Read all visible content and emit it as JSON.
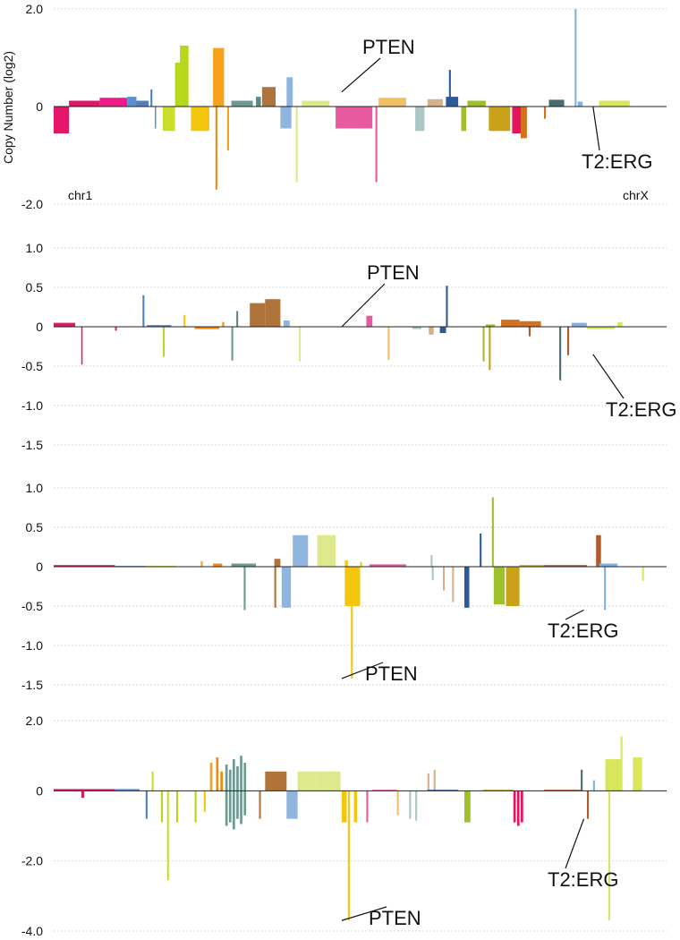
{
  "figure": {
    "colors": {
      "gridline": "#d9d9d9",
      "baseline": "#222222",
      "leader": "#111111",
      "chromosomes": [
        "#e3166a",
        "#f0198a",
        "#5a8fd0",
        "#4f7fbf",
        "#c8de2a",
        "#b6d81c",
        "#f4c60e",
        "#f7a11b",
        "#ef8a0e",
        "#6f9a92",
        "#5a8a7f",
        "#b07339",
        "#c07f45",
        "#8fb4dd",
        "#dde98c",
        "#e85a9f",
        "#f4be64",
        "#a9c7c4",
        "#d6b08a",
        "#2d5a9b",
        "#9ec02b",
        "#c9a219",
        "#e1165c",
        "#d4701e",
        "#b25a2a",
        "#4a6b6b",
        "#7fb2e0",
        "#d7e65a"
      ]
    }
  },
  "chart_data": [
    {
      "type": "bar",
      "panel": "1",
      "ylabel": "Copy Number (log2)",
      "ylim": [
        -2.0,
        2.0
      ],
      "yticks": [
        2.0,
        0,
        -2.0
      ],
      "ytick_labels": [
        "2.0",
        "0",
        "-2.0"
      ],
      "x_domain": [
        0,
        1000
      ],
      "start_label": "chr1",
      "end_label": "chrX",
      "annotations": [
        {
          "text": "PTEN",
          "x": 470,
          "y": 0.3
        },
        {
          "text": "T2:ERG",
          "x": 880,
          "y": 0.0
        }
      ],
      "segments": [
        {
          "x": 0,
          "w": 25,
          "v": -0.55,
          "c": 0
        },
        {
          "x": 25,
          "w": 50,
          "v": 0.12,
          "c": 0
        },
        {
          "x": 75,
          "w": 45,
          "v": 0.18,
          "c": 1
        },
        {
          "x": 120,
          "w": 15,
          "v": 0.2,
          "c": 2
        },
        {
          "x": 135,
          "w": 20,
          "v": 0.12,
          "c": 3
        },
        {
          "x": 158,
          "w": 3,
          "v": 0.35,
          "c": 3
        },
        {
          "x": 165,
          "w": 2,
          "v": -0.45,
          "c": 2
        },
        {
          "x": 178,
          "w": 20,
          "v": -0.5,
          "c": 4
        },
        {
          "x": 198,
          "w": 8,
          "v": 0.9,
          "c": 5
        },
        {
          "x": 206,
          "w": 14,
          "v": 1.25,
          "c": 5
        },
        {
          "x": 224,
          "w": 30,
          "v": -0.5,
          "c": 6
        },
        {
          "x": 260,
          "w": 18,
          "v": 1.2,
          "c": 7
        },
        {
          "x": 264,
          "w": 3,
          "v": -1.7,
          "c": 8
        },
        {
          "x": 283,
          "w": 3,
          "v": -0.9,
          "c": 7
        },
        {
          "x": 290,
          "w": 35,
          "v": 0.12,
          "c": 9
        },
        {
          "x": 330,
          "w": 8,
          "v": 0.2,
          "c": 10
        },
        {
          "x": 340,
          "w": 22,
          "v": 0.4,
          "c": 11
        },
        {
          "x": 370,
          "w": 18,
          "v": -0.45,
          "c": 13
        },
        {
          "x": 380,
          "w": 10,
          "v": 0.6,
          "c": 13
        },
        {
          "x": 395,
          "w": 3,
          "v": -1.55,
          "c": 14
        },
        {
          "x": 405,
          "w": 45,
          "v": 0.12,
          "c": 14
        },
        {
          "x": 460,
          "w": 60,
          "v": -0.45,
          "c": 15
        },
        {
          "x": 525,
          "w": 3,
          "v": -1.55,
          "c": 15
        },
        {
          "x": 530,
          "w": 45,
          "v": 0.18,
          "c": 16
        },
        {
          "x": 590,
          "w": 15,
          "v": -0.5,
          "c": 17
        },
        {
          "x": 610,
          "w": 25,
          "v": 0.15,
          "c": 18
        },
        {
          "x": 640,
          "w": 20,
          "v": 0.2,
          "c": 19
        },
        {
          "x": 645,
          "w": 3,
          "v": 0.75,
          "c": 19
        },
        {
          "x": 665,
          "w": 8,
          "v": -0.5,
          "c": 20
        },
        {
          "x": 675,
          "w": 30,
          "v": 0.12,
          "c": 20
        },
        {
          "x": 710,
          "w": 35,
          "v": -0.5,
          "c": 21
        },
        {
          "x": 748,
          "w": 14,
          "v": -0.55,
          "c": 22
        },
        {
          "x": 762,
          "w": 10,
          "v": -0.65,
          "c": 23
        },
        {
          "x": 800,
          "w": 3,
          "v": -0.25,
          "c": 23
        },
        {
          "x": 808,
          "w": 25,
          "v": 0.14,
          "c": 25
        },
        {
          "x": 850,
          "w": 3,
          "v": 2.0,
          "c": 26
        },
        {
          "x": 855,
          "w": 8,
          "v": 0.1,
          "c": 26
        },
        {
          "x": 890,
          "w": 50,
          "v": 0.12,
          "c": 27
        }
      ]
    },
    {
      "type": "bar",
      "panel": "2",
      "ylim": [
        -1.5,
        1.0
      ],
      "yticks": [
        1.0,
        0.5,
        0,
        -0.5,
        -1.0,
        -1.5
      ],
      "ytick_labels": [
        "1.0",
        "0.5",
        "0",
        "-0.5",
        "-1.0",
        "-1.5"
      ],
      "x_domain": [
        0,
        1000
      ],
      "annotations": [
        {
          "text": "PTEN",
          "x": 470,
          "y": 0.0
        },
        {
          "text": "T2:ERG",
          "x": 880,
          "y": -0.35
        }
      ],
      "segments": [
        {
          "x": 0,
          "w": 35,
          "v": 0.05,
          "c": 0
        },
        {
          "x": 45,
          "w": 2,
          "v": -0.48,
          "c": 0
        },
        {
          "x": 100,
          "w": 3,
          "v": -0.05,
          "c": 1
        },
        {
          "x": 145,
          "w": 3,
          "v": 0.4,
          "c": 3
        },
        {
          "x": 152,
          "w": 40,
          "v": 0.02,
          "c": 3
        },
        {
          "x": 178,
          "w": 3,
          "v": -0.38,
          "c": 5
        },
        {
          "x": 212,
          "w": 3,
          "v": 0.15,
          "c": 6
        },
        {
          "x": 230,
          "w": 40,
          "v": -0.03,
          "c": 8
        },
        {
          "x": 275,
          "w": 3,
          "v": 0.06,
          "c": 8
        },
        {
          "x": 290,
          "w": 3,
          "v": -0.43,
          "c": 9
        },
        {
          "x": 298,
          "w": 3,
          "v": 0.2,
          "c": 10
        },
        {
          "x": 320,
          "w": 25,
          "v": 0.3,
          "c": 11
        },
        {
          "x": 345,
          "w": 25,
          "v": 0.35,
          "c": 11
        },
        {
          "x": 375,
          "w": 10,
          "v": 0.08,
          "c": 13
        },
        {
          "x": 400,
          "w": 3,
          "v": -0.44,
          "c": 14
        },
        {
          "x": 510,
          "w": 10,
          "v": 0.14,
          "c": 15
        },
        {
          "x": 545,
          "w": 3,
          "v": -0.42,
          "c": 16
        },
        {
          "x": 585,
          "w": 15,
          "v": -0.03,
          "c": 17
        },
        {
          "x": 612,
          "w": 8,
          "v": -0.1,
          "c": 18
        },
        {
          "x": 640,
          "w": 3,
          "v": 0.52,
          "c": 19
        },
        {
          "x": 630,
          "w": 10,
          "v": -0.08,
          "c": 19
        },
        {
          "x": 700,
          "w": 3,
          "v": -0.44,
          "c": 20
        },
        {
          "x": 710,
          "w": 3,
          "v": -0.55,
          "c": 21
        },
        {
          "x": 705,
          "w": 15,
          "v": 0.03,
          "c": 20
        },
        {
          "x": 730,
          "w": 30,
          "v": 0.09,
          "c": 23
        },
        {
          "x": 760,
          "w": 35,
          "v": 0.07,
          "c": 23
        },
        {
          "x": 775,
          "w": 3,
          "v": -0.12,
          "c": 24
        },
        {
          "x": 825,
          "w": 3,
          "v": -0.68,
          "c": 25
        },
        {
          "x": 838,
          "w": 3,
          "v": -0.36,
          "c": 24
        },
        {
          "x": 845,
          "w": 25,
          "v": 0.05,
          "c": 26
        },
        {
          "x": 870,
          "w": 45,
          "v": -0.03,
          "c": 27
        },
        {
          "x": 920,
          "w": 8,
          "v": 0.06,
          "c": 27
        }
      ]
    },
    {
      "type": "bar",
      "panel": "3",
      "ylim": [
        -1.5,
        1.0
      ],
      "yticks": [
        1.0,
        0.5,
        0,
        -0.5,
        -1.0,
        -1.5
      ],
      "ytick_labels": [
        "1.0",
        "0.5",
        "0",
        "-0.5",
        "-1.0",
        "-1.5"
      ],
      "x_domain": [
        0,
        1000
      ],
      "annotations": [
        {
          "text": "T2:ERG",
          "x": 865,
          "y": -0.55
        },
        {
          "text": "PTEN",
          "x": 470,
          "y": -1.42
        }
      ],
      "segments": [
        {
          "x": 0,
          "w": 100,
          "v": 0.02,
          "c": 0
        },
        {
          "x": 100,
          "w": 50,
          "v": 0.01,
          "c": 2
        },
        {
          "x": 150,
          "w": 50,
          "v": 0.01,
          "c": 4
        },
        {
          "x": 240,
          "w": 3,
          "v": 0.07,
          "c": 7
        },
        {
          "x": 260,
          "w": 15,
          "v": 0.04,
          "c": 8
        },
        {
          "x": 310,
          "w": 3,
          "v": -0.55,
          "c": 9
        },
        {
          "x": 290,
          "w": 40,
          "v": 0.04,
          "c": 9
        },
        {
          "x": 360,
          "w": 3,
          "v": -0.52,
          "c": 11
        },
        {
          "x": 360,
          "w": 10,
          "v": 0.1,
          "c": 11
        },
        {
          "x": 372,
          "w": 15,
          "v": -0.52,
          "c": 13
        },
        {
          "x": 390,
          "w": 25,
          "v": 0.4,
          "c": 13
        },
        {
          "x": 430,
          "w": 30,
          "v": 0.4,
          "c": 14
        },
        {
          "x": 475,
          "w": 5,
          "v": 0.08,
          "c": 6
        },
        {
          "x": 475,
          "w": 25,
          "v": -0.5,
          "c": 6
        },
        {
          "x": 485,
          "w": 3,
          "v": -1.42,
          "c": 6
        },
        {
          "x": 500,
          "w": 3,
          "v": 0.06,
          "c": 6
        },
        {
          "x": 515,
          "w": 60,
          "v": 0.03,
          "c": 15
        },
        {
          "x": 615,
          "w": 3,
          "v": 0.15,
          "c": 17
        },
        {
          "x": 617,
          "w": 3,
          "v": -0.17,
          "c": 17
        },
        {
          "x": 635,
          "w": 3,
          "v": -0.3,
          "c": 18
        },
        {
          "x": 650,
          "w": 3,
          "v": -0.45,
          "c": 18
        },
        {
          "x": 670,
          "w": 8,
          "v": -0.52,
          "c": 19
        },
        {
          "x": 695,
          "w": 3,
          "v": 0.42,
          "c": 19
        },
        {
          "x": 715,
          "w": 3,
          "v": 0.88,
          "c": 20
        },
        {
          "x": 718,
          "w": 18,
          "v": -0.48,
          "c": 20
        },
        {
          "x": 738,
          "w": 22,
          "v": -0.5,
          "c": 21
        },
        {
          "x": 760,
          "w": 40,
          "v": 0.02,
          "c": 21
        },
        {
          "x": 800,
          "w": 70,
          "v": 0.02,
          "c": 24
        },
        {
          "x": 885,
          "w": 8,
          "v": 0.4,
          "c": 24
        },
        {
          "x": 898,
          "w": 3,
          "v": -0.55,
          "c": 26
        },
        {
          "x": 890,
          "w": 30,
          "v": 0.04,
          "c": 26
        },
        {
          "x": 960,
          "w": 3,
          "v": -0.18,
          "c": 27
        }
      ]
    },
    {
      "type": "bar",
      "panel": "4",
      "ylim": [
        -4.0,
        2.0
      ],
      "yticks": [
        2.0,
        0,
        -2.0,
        -4.0
      ],
      "ytick_labels": [
        "2.0",
        "0",
        "-2.0",
        "-4.0"
      ],
      "x_domain": [
        0,
        1000
      ],
      "annotations": [
        {
          "text": "T2:ERG",
          "x": 865,
          "y": -0.8
        },
        {
          "text": "PTEN",
          "x": 470,
          "y": -3.7
        }
      ],
      "segments": [
        {
          "x": 0,
          "w": 100,
          "v": 0.05,
          "c": 0
        },
        {
          "x": 45,
          "w": 5,
          "v": -0.2,
          "c": 0
        },
        {
          "x": 100,
          "w": 40,
          "v": 0.05,
          "c": 2
        },
        {
          "x": 150,
          "w": 3,
          "v": -0.8,
          "c": 3
        },
        {
          "x": 160,
          "w": 3,
          "v": 0.55,
          "c": 4
        },
        {
          "x": 175,
          "w": 3,
          "v": -0.9,
          "c": 5
        },
        {
          "x": 185,
          "w": 3,
          "v": -2.55,
          "c": 4
        },
        {
          "x": 200,
          "w": 3,
          "v": -0.9,
          "c": 5
        },
        {
          "x": 230,
          "w": 3,
          "v": -0.9,
          "c": 5
        },
        {
          "x": 245,
          "w": 3,
          "v": -0.6,
          "c": 6
        },
        {
          "x": 255,
          "w": 4,
          "v": 0.8,
          "c": 7
        },
        {
          "x": 265,
          "w": 4,
          "v": 0.95,
          "c": 8
        },
        {
          "x": 272,
          "w": 4,
          "v": 0.55,
          "c": 8
        },
        {
          "x": 280,
          "w": 4,
          "v": 0.75,
          "c": 9
        },
        {
          "x": 280,
          "w": 4,
          "v": -1.0,
          "c": 9
        },
        {
          "x": 286,
          "w": 4,
          "v": 0.6,
          "c": 9
        },
        {
          "x": 286,
          "w": 4,
          "v": -0.9,
          "c": 9
        },
        {
          "x": 292,
          "w": 4,
          "v": 0.9,
          "c": 9
        },
        {
          "x": 292,
          "w": 4,
          "v": -1.1,
          "c": 9
        },
        {
          "x": 298,
          "w": 4,
          "v": 0.7,
          "c": 9
        },
        {
          "x": 298,
          "w": 4,
          "v": -0.8,
          "c": 9
        },
        {
          "x": 304,
          "w": 4,
          "v": 1.0,
          "c": 9
        },
        {
          "x": 304,
          "w": 4,
          "v": -0.95,
          "c": 9
        },
        {
          "x": 310,
          "w": 4,
          "v": 0.8,
          "c": 9
        },
        {
          "x": 310,
          "w": 4,
          "v": -0.7,
          "c": 9
        },
        {
          "x": 335,
          "w": 3,
          "v": -0.8,
          "c": 11
        },
        {
          "x": 345,
          "w": 35,
          "v": 0.55,
          "c": 11
        },
        {
          "x": 380,
          "w": 18,
          "v": -0.8,
          "c": 13
        },
        {
          "x": 398,
          "w": 30,
          "v": 0.55,
          "c": 14
        },
        {
          "x": 428,
          "w": 40,
          "v": 0.55,
          "c": 14
        },
        {
          "x": 470,
          "w": 8,
          "v": -0.9,
          "c": 6
        },
        {
          "x": 480,
          "w": 3,
          "v": -3.7,
          "c": 6
        },
        {
          "x": 490,
          "w": 5,
          "v": -0.9,
          "c": 6
        },
        {
          "x": 510,
          "w": 3,
          "v": -0.9,
          "c": 15
        },
        {
          "x": 520,
          "w": 40,
          "v": 0.03,
          "c": 15
        },
        {
          "x": 560,
          "w": 3,
          "v": -0.7,
          "c": 16
        },
        {
          "x": 580,
          "w": 3,
          "v": -0.8,
          "c": 17
        },
        {
          "x": 590,
          "w": 3,
          "v": -0.85,
          "c": 17
        },
        {
          "x": 610,
          "w": 3,
          "v": 0.5,
          "c": 18
        },
        {
          "x": 620,
          "w": 3,
          "v": 0.6,
          "c": 18
        },
        {
          "x": 610,
          "w": 50,
          "v": 0.03,
          "c": 19
        },
        {
          "x": 670,
          "w": 10,
          "v": -0.9,
          "c": 20
        },
        {
          "x": 700,
          "w": 50,
          "v": 0.03,
          "c": 21
        },
        {
          "x": 750,
          "w": 4,
          "v": -0.9,
          "c": 22
        },
        {
          "x": 756,
          "w": 4,
          "v": -1.0,
          "c": 22
        },
        {
          "x": 762,
          "w": 4,
          "v": -0.9,
          "c": 22
        },
        {
          "x": 800,
          "w": 60,
          "v": 0.03,
          "c": 24
        },
        {
          "x": 860,
          "w": 3,
          "v": 0.6,
          "c": 25
        },
        {
          "x": 870,
          "w": 3,
          "v": -0.8,
          "c": 24
        },
        {
          "x": 880,
          "w": 3,
          "v": 0.3,
          "c": 26
        },
        {
          "x": 900,
          "w": 25,
          "v": 0.9,
          "c": 27
        },
        {
          "x": 905,
          "w": 3,
          "v": -3.7,
          "c": 27
        },
        {
          "x": 925,
          "w": 3,
          "v": 1.55,
          "c": 27
        },
        {
          "x": 945,
          "w": 15,
          "v": 0.95,
          "c": 27
        }
      ]
    }
  ]
}
